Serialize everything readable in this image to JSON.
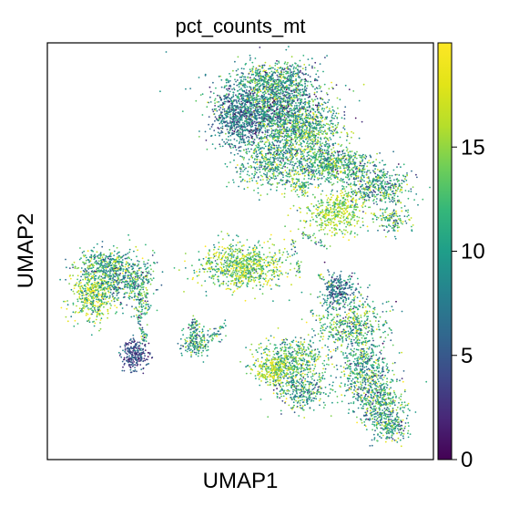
{
  "chart_data": {
    "type": "scatter",
    "title": "pct_counts_mt",
    "xlabel": "UMAP1",
    "ylabel": "UMAP2",
    "x_ticks": [],
    "y_ticks": [],
    "grid": false,
    "colormap": "viridis",
    "colorbar": {
      "range": [
        0,
        20
      ],
      "ticks": [
        {
          "value": 0,
          "label": "0"
        },
        {
          "value": 5,
          "label": "5"
        },
        {
          "value": 10,
          "label": "10"
        },
        {
          "value": 15,
          "label": "15"
        }
      ],
      "min_color": "#440154",
      "max_color": "#fde725"
    }
  }
}
